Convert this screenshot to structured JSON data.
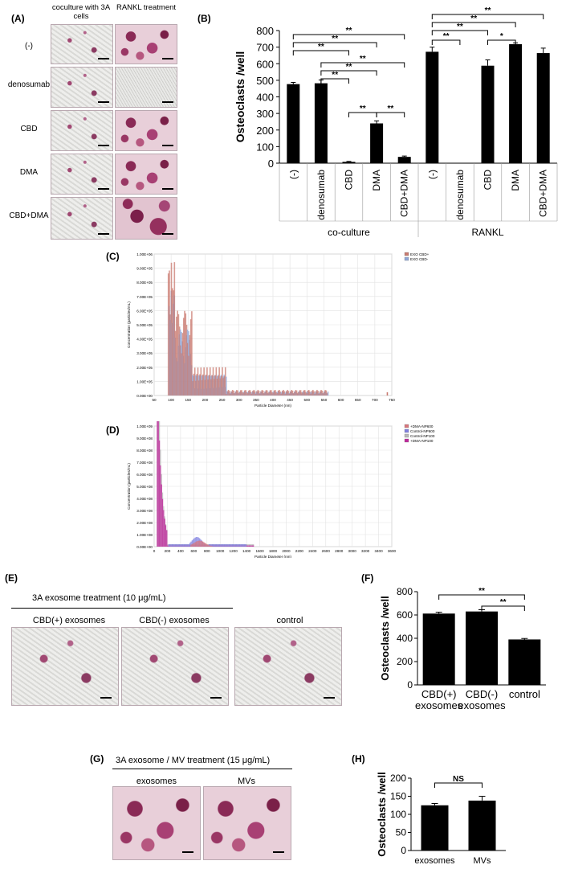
{
  "panel_A": {
    "label": "(A)",
    "col_headers": [
      "coculture with 3A cells",
      "RANKL treatment"
    ],
    "rows": [
      "(-)",
      "denosumab",
      "CBD",
      "DMA",
      "CBD+DMA"
    ]
  },
  "panel_B": {
    "label": "(B)",
    "ylabel": "Osteoclasts  /well",
    "group_labels": [
      "co-culture",
      "RANKL"
    ],
    "sig": [
      "**",
      "**",
      "**",
      "**",
      "**",
      "**",
      "**",
      "**",
      "**",
      "**",
      "**",
      "*",
      "**"
    ]
  },
  "panel_C": {
    "label": "(C)"
  },
  "panel_D": {
    "label": "(D)"
  },
  "panel_E": {
    "label": "(E)",
    "title": "3A exosome treatment (10 μg/mL)",
    "images": [
      "CBD(+)  exosomes",
      "CBD(-) exosomes",
      "control"
    ]
  },
  "panel_F": {
    "label": "(F)",
    "ylabel": "Osteoclasts /well",
    "sig": [
      "**",
      "**"
    ]
  },
  "panel_G": {
    "label": "(G)",
    "title": "3A exosome / MV treatment (15 μg/mL)",
    "images": [
      "exosomes",
      "MVs"
    ]
  },
  "panel_H": {
    "label": "(H)",
    "ylabel": "Osteoclasts /well",
    "sig": [
      "NS"
    ]
  },
  "chart_data": [
    {
      "id": "B",
      "type": "bar",
      "categories": [
        "(-)",
        "denosumab",
        "CBD",
        "DMA",
        "CBD+DMA",
        "(-)",
        "denosumab",
        "CBD",
        "DMA",
        "CBD+DMA"
      ],
      "groups": [
        "co-culture",
        "co-culture",
        "co-culture",
        "co-culture",
        "co-culture",
        "RANKL",
        "RANKL",
        "RANKL",
        "RANKL",
        "RANKL"
      ],
      "values": [
        477,
        482,
        8,
        240,
        38,
        672,
        0,
        588,
        718,
        664
      ],
      "errors": [
        10,
        20,
        3,
        15,
        5,
        28,
        0,
        35,
        8,
        30
      ],
      "ylim": [
        0,
        800
      ],
      "yticks": [
        0,
        100,
        200,
        300,
        400,
        500,
        600,
        700,
        800
      ],
      "color": "#000000"
    },
    {
      "id": "C",
      "type": "bar",
      "series": [
        {
          "name": "EXO CBD+",
          "color": "#c97a6f"
        },
        {
          "name": "EXO CBD-",
          "color": "#8fa7d8"
        }
      ],
      "xlabel": "Particle Diameter (nm)",
      "ylabel": "Concentration (particles/mL)",
      "xticks": [
        50,
        100,
        150,
        200,
        250,
        300,
        350,
        400,
        450,
        500,
        550,
        600,
        650,
        700,
        750
      ],
      "yticks": [
        "0.00E+00",
        "1.00E+05",
        "2.00E+05",
        "3.00E+05",
        "4.00E+05",
        "5.00E+05",
        "6.00E+05",
        "7.00E+05",
        "8.00E+05",
        "9.00E+05",
        "1.00E+06"
      ],
      "xlim": [
        50,
        750
      ],
      "ylim": [
        0,
        1000000
      ]
    },
    {
      "id": "D",
      "type": "bar",
      "series": [
        {
          "name": "+DMA-NP600",
          "color": "#d9767c"
        },
        {
          "name": "Control-NP600",
          "color": "#7f7fe0"
        },
        {
          "name": "Control-NP100",
          "color": "#b8b8b8"
        },
        {
          "name": "+DMA-NP100",
          "color": "#c0279c"
        }
      ],
      "xlabel": "Particle Diameter (nm)",
      "ylabel": "Concentration (particles/mL)",
      "xticks": [
        0,
        200,
        400,
        600,
        800,
        1000,
        1200,
        1400,
        1600,
        1800,
        2000,
        2200,
        2400,
        2600,
        2800,
        3000,
        3200,
        3400,
        3600
      ],
      "yticks": [
        "0.00E+00",
        "1.00E+08",
        "2.00E+08",
        "3.00E+08",
        "4.00E+08",
        "5.00E+08",
        "6.00E+08",
        "7.00E+08",
        "8.00E+08",
        "9.00E+08",
        "1.00E+09"
      ],
      "xlim": [
        0,
        3600
      ],
      "ylim": [
        0,
        1000000000
      ]
    },
    {
      "id": "F",
      "type": "bar",
      "categories": [
        "CBD(+) exosomes",
        "CBD(-) exosomes",
        "control"
      ],
      "values": [
        612,
        630,
        390
      ],
      "errors": [
        12,
        15,
        8
      ],
      "ylim": [
        0,
        800
      ],
      "yticks": [
        0,
        200,
        400,
        600,
        800
      ]
    },
    {
      "id": "H",
      "type": "bar",
      "categories": [
        "exosomes",
        "MVs"
      ],
      "values": [
        125,
        138
      ],
      "errors": [
        5,
        12
      ],
      "ylim": [
        0,
        200
      ],
      "yticks": [
        0,
        50,
        100,
        150,
        200
      ]
    }
  ]
}
